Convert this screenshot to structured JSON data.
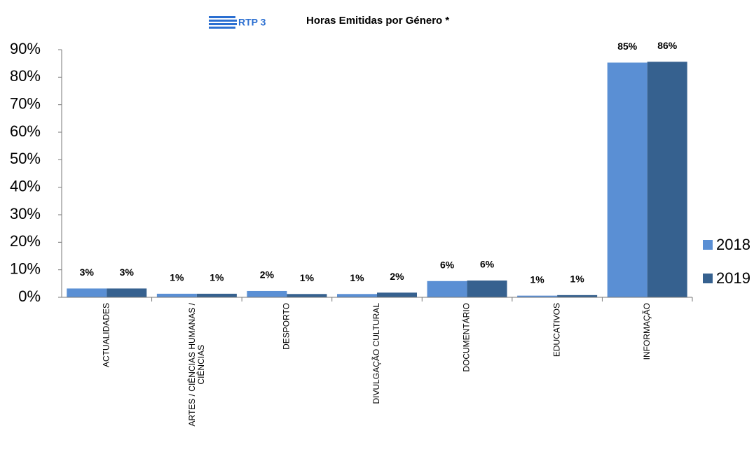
{
  "chart_data": {
    "type": "bar",
    "title": "Horas Emitidas por Género *",
    "logo": "RTP 3",
    "categories": [
      "ACTUALIDADES",
      "ARTES / CIÊNCIAS HUMANAS / CIÊNCIAS",
      "DESPORTO",
      "DIVULGAÇÃO CULTURAL",
      "DOCUMENTÁRIO",
      "EDUCATIVOS",
      "INFORMAÇÃO"
    ],
    "series": [
      {
        "name": "2018",
        "color": "#5a8fd4",
        "values": [
          3.2,
          1.3,
          2.3,
          1.2,
          5.9,
          0.6,
          85.3
        ],
        "value_labels": [
          "3%",
          "1%",
          "2%",
          "1%",
          "6%",
          "1%",
          "85%"
        ]
      },
      {
        "name": "2019",
        "color": "#36618f",
        "values": [
          3.2,
          1.3,
          1.2,
          1.7,
          6.1,
          0.8,
          85.6
        ],
        "value_labels": [
          "3%",
          "1%",
          "1%",
          "2%",
          "6%",
          "1%",
          "86%"
        ]
      }
    ],
    "ylim": [
      0,
      90
    ],
    "yticks": [
      {
        "value": 0,
        "label": "0%"
      },
      {
        "value": 10,
        "label": "10%"
      },
      {
        "value": 20,
        "label": "20%"
      },
      {
        "value": 30,
        "label": "30%"
      },
      {
        "value": 40,
        "label": "40%"
      },
      {
        "value": 50,
        "label": "50%"
      },
      {
        "value": 60,
        "label": "60%"
      },
      {
        "value": 70,
        "label": "70%"
      },
      {
        "value": 80,
        "label": "80%"
      },
      {
        "value": 90,
        "label": "90%"
      }
    ],
    "legend": "right"
  }
}
